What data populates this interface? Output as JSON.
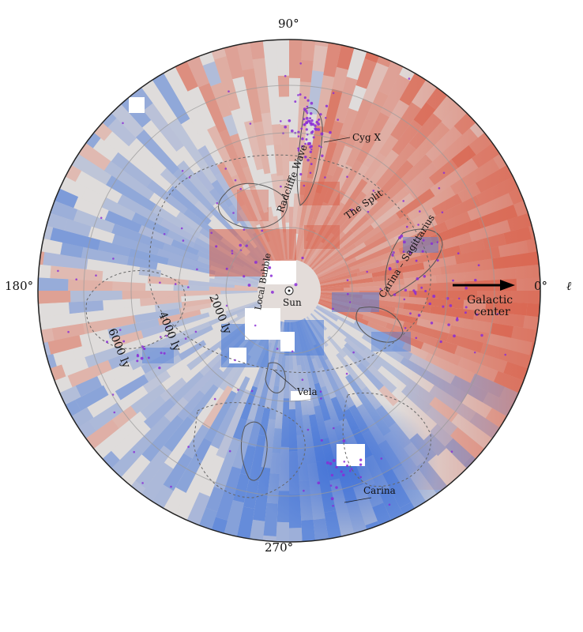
{
  "directions": {
    "top": "90°",
    "left": "180°",
    "bottom": "270°",
    "right": "0°"
  },
  "axis_symbol": "ℓ",
  "galactic_center": {
    "line1": "Galactic",
    "line2": "center"
  },
  "sun_label": "Sun",
  "ring_labels": [
    "2000 ly",
    "4000 ly",
    "6000 ly"
  ],
  "regions": {
    "cyg_x": "Cyg X",
    "radcliffe": "Radcliffe Wave",
    "split": "The Split",
    "carina_sag": "Carina – Sagittarius",
    "local_bubble": "Local Bubble",
    "vela": "Vela",
    "carina": "Carina"
  },
  "colors": {
    "red": "#d9604a",
    "blue": "#4f7ed9",
    "neutral": "#dcdcdc",
    "stars": "#8a2bd6"
  }
}
